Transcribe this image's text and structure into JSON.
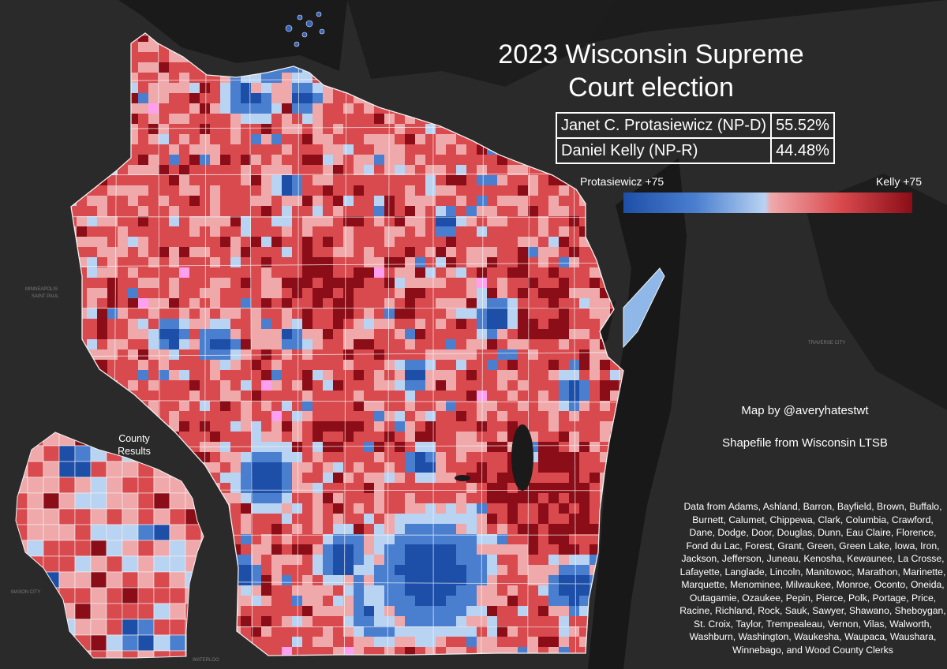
{
  "title": "2023 Wisconsin Supreme Court election",
  "results": [
    {
      "candidate": "Janet C. Protasiewicz (NP-D)",
      "percent": "55.52%"
    },
    {
      "candidate": "Daniel Kelly (NP-R)",
      "percent": "44.48%"
    }
  ],
  "legend": {
    "left_label": "Protasiewicz +75",
    "right_label": "Kelly +75",
    "colors": [
      "#1e4fa8",
      "#4a7fd0",
      "#b9d3f2",
      "#f0a9ab",
      "#d94a4e",
      "#8b0d17"
    ]
  },
  "credits": {
    "map_by": "Map by @averyhatestwt",
    "shapefile": "Shapefile from Wisconsin LTSB",
    "data_source": "Data from Adams, Ashland, Barron, Bayfield, Brown, Buffalo, Burnett, Calumet, Chippewa, Clark, Columbia, Crawford, Dane, Dodge, Door, Douglas, Dunn, Eau Claire, Florence, Fond du Lac, Forest, Grant, Green, Green Lake, Iowa, Iron, Jackson, Jefferson, Juneau, Kenosha, Kewaunee, La Crosse, Lafayette, Langlade, Lincoln, Manitowoc, Marathon, Marinette, Marquette, Menominee, Milwaukee, Monroe, Oconto, Oneida, Outagamie, Ozaukee, Pepin, Pierce, Polk, Portage, Price, Racine, Richland, Rock, Sauk, Sawyer, Shawano, Sheboygan, St. Croix, Taylor, Trempealeau, Vernon, Vilas, Walworth, Washburn, Washington, Waukesha, Waupaca, Waushara, Winnebago, and Wood County Clerks"
  },
  "inset": {
    "label": "County Results"
  },
  "base_map_labels": {
    "minneapolis": "MINNEAPOLIS",
    "saint_paul": "SAINT PAUL",
    "mason_city": "MASON CITY",
    "waterloo": "WATERLOO",
    "traverse_city": "TRAVERSE CITY"
  },
  "map_colors": {
    "background": "#1c1c1c",
    "land": "#2e2e2e",
    "water": "#1a1a1a",
    "borders": "#f2f2f2",
    "strong_kelly": "#8b0d17",
    "kelly": "#d94a4e",
    "lean_kelly": "#f0a9ab",
    "lean_protasiewicz": "#b9d3f2",
    "protasiewicz": "#4a7fd0",
    "strong_protasiewicz": "#1e4fa8",
    "tie": "#ff9ff0"
  }
}
